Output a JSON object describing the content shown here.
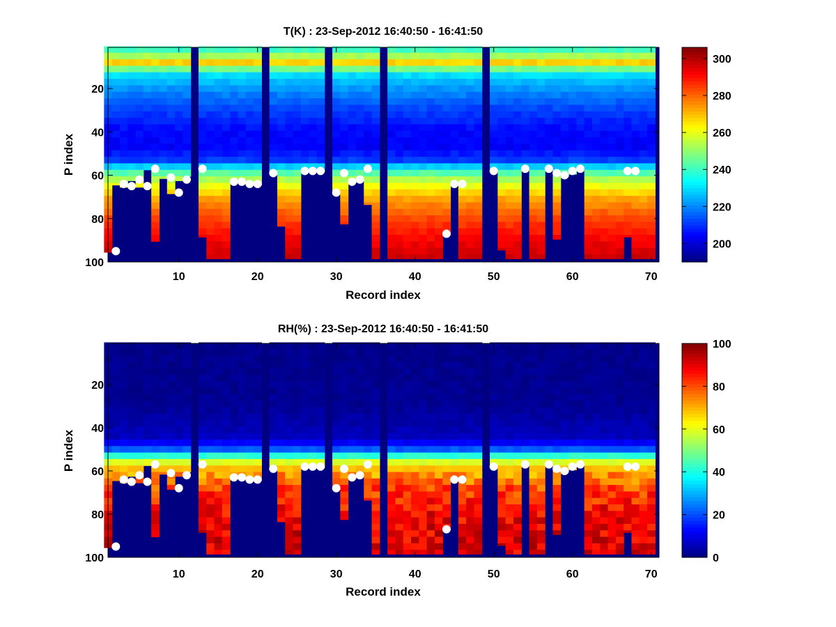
{
  "chart_data": [
    {
      "type": "heatmap",
      "title": "T(K) : 23-Sep-2012 16:40:50 - 16:41:50",
      "xlabel": "Record index",
      "ylabel": "P index",
      "xlim": [
        1,
        71
      ],
      "ylim": [
        100,
        1
      ],
      "y_reversed": true,
      "xticks": [
        10,
        20,
        30,
        40,
        50,
        60,
        70
      ],
      "yticks": [
        20,
        40,
        60,
        80,
        100
      ],
      "colormap": "jet",
      "clim": [
        190,
        306
      ],
      "colorbar_ticks": [
        200,
        220,
        240,
        260,
        280,
        300
      ],
      "field_profile": [
        [
          1,
          235
        ],
        [
          5,
          250
        ],
        [
          9,
          270
        ],
        [
          13,
          232
        ],
        [
          20,
          222
        ],
        [
          30,
          212
        ],
        [
          40,
          205
        ],
        [
          48,
          204
        ],
        [
          54,
          212
        ],
        [
          58,
          238
        ],
        [
          62,
          252
        ],
        [
          66,
          262
        ],
        [
          72,
          274
        ],
        [
          80,
          283
        ],
        [
          90,
          292
        ],
        [
          100,
          298
        ]
      ],
      "missing_value": 190,
      "missing_columns": [
        12,
        21,
        29,
        36,
        49
      ],
      "surface_p_index": [
        95,
        64,
        65,
        62,
        65,
        57,
        90,
        61,
        68,
        62,
        60,
        57,
        88,
        98,
        98,
        98,
        63,
        63,
        64,
        64,
        60,
        59,
        83,
        98,
        98,
        58,
        58,
        58,
        60,
        68,
        82,
        63,
        62,
        73,
        98,
        60,
        98,
        98,
        98,
        98,
        98,
        98,
        98,
        87,
        64,
        98,
        98,
        98,
        60,
        58,
        94,
        98,
        98,
        57,
        98,
        98,
        57,
        89,
        60,
        59,
        57,
        98,
        98,
        98,
        98,
        98,
        88,
        98,
        98,
        98
      ],
      "surface_markers": [
        {
          "x": 2,
          "y": 95
        },
        {
          "x": 3,
          "y": 64
        },
        {
          "x": 4,
          "y": 65
        },
        {
          "x": 5,
          "y": 62
        },
        {
          "x": 6,
          "y": 65
        },
        {
          "x": 7,
          "y": 57
        },
        {
          "x": 9,
          "y": 61
        },
        {
          "x": 10,
          "y": 68
        },
        {
          "x": 11,
          "y": 62
        },
        {
          "x": 13,
          "y": 57
        },
        {
          "x": 17,
          "y": 63
        },
        {
          "x": 18,
          "y": 63
        },
        {
          "x": 19,
          "y": 64
        },
        {
          "x": 20,
          "y": 64
        },
        {
          "x": 22,
          "y": 59
        },
        {
          "x": 26,
          "y": 58
        },
        {
          "x": 27,
          "y": 58
        },
        {
          "x": 28,
          "y": 58
        },
        {
          "x": 30,
          "y": 68
        },
        {
          "x": 31,
          "y": 59
        },
        {
          "x": 32,
          "y": 63
        },
        {
          "x": 33,
          "y": 62
        },
        {
          "x": 34,
          "y": 57
        },
        {
          "x": 44,
          "y": 87
        },
        {
          "x": 45,
          "y": 64
        },
        {
          "x": 46,
          "y": 64
        },
        {
          "x": 50,
          "y": 58
        },
        {
          "x": 54,
          "y": 57
        },
        {
          "x": 57,
          "y": 57
        },
        {
          "x": 58,
          "y": 59
        },
        {
          "x": 59,
          "y": 60
        },
        {
          "x": 60,
          "y": 58
        },
        {
          "x": 61,
          "y": 57
        },
        {
          "x": 67,
          "y": 58
        },
        {
          "x": 68,
          "y": 58
        }
      ]
    },
    {
      "type": "heatmap",
      "title": "RH(%) : 23-Sep-2012 16:40:50 - 16:41:50",
      "xlabel": "Record index",
      "ylabel": "P index",
      "xlim": [
        1,
        71
      ],
      "ylim": [
        100,
        1
      ],
      "y_reversed": true,
      "xticks": [
        10,
        20,
        30,
        40,
        50,
        60,
        70
      ],
      "yticks": [
        20,
        40,
        60,
        80,
        100
      ],
      "colormap": "jet",
      "clim": [
        0,
        100
      ],
      "colorbar_ticks": [
        0,
        20,
        40,
        60,
        80,
        100
      ],
      "field_profile": [
        [
          1,
          1
        ],
        [
          30,
          2
        ],
        [
          45,
          6
        ],
        [
          50,
          18
        ],
        [
          54,
          45
        ],
        [
          57,
          62
        ],
        [
          60,
          70
        ],
        [
          65,
          76
        ],
        [
          70,
          82
        ],
        [
          80,
          88
        ],
        [
          90,
          90
        ],
        [
          100,
          90
        ]
      ],
      "missing_value": 0,
      "missing_columns": [
        12,
        21,
        29,
        36,
        49
      ],
      "surface_p_index": [
        95,
        64,
        65,
        62,
        65,
        57,
        90,
        61,
        68,
        62,
        60,
        57,
        88,
        98,
        98,
        98,
        63,
        63,
        64,
        64,
        60,
        59,
        83,
        98,
        98,
        58,
        58,
        58,
        60,
        68,
        82,
        63,
        62,
        73,
        98,
        60,
        98,
        98,
        98,
        98,
        98,
        98,
        98,
        87,
        64,
        98,
        98,
        98,
        60,
        58,
        94,
        98,
        98,
        57,
        98,
        98,
        57,
        89,
        60,
        59,
        57,
        98,
        98,
        98,
        98,
        98,
        88,
        98,
        98,
        98
      ],
      "surface_markers": [
        {
          "x": 2,
          "y": 95
        },
        {
          "x": 3,
          "y": 64
        },
        {
          "x": 4,
          "y": 65
        },
        {
          "x": 5,
          "y": 62
        },
        {
          "x": 6,
          "y": 65
        },
        {
          "x": 7,
          "y": 57
        },
        {
          "x": 9,
          "y": 61
        },
        {
          "x": 10,
          "y": 68
        },
        {
          "x": 11,
          "y": 62
        },
        {
          "x": 13,
          "y": 57
        },
        {
          "x": 17,
          "y": 63
        },
        {
          "x": 18,
          "y": 63
        },
        {
          "x": 19,
          "y": 64
        },
        {
          "x": 20,
          "y": 64
        },
        {
          "x": 22,
          "y": 59
        },
        {
          "x": 26,
          "y": 58
        },
        {
          "x": 27,
          "y": 58
        },
        {
          "x": 28,
          "y": 58
        },
        {
          "x": 30,
          "y": 68
        },
        {
          "x": 31,
          "y": 59
        },
        {
          "x": 32,
          "y": 63
        },
        {
          "x": 33,
          "y": 62
        },
        {
          "x": 34,
          "y": 57
        },
        {
          "x": 44,
          "y": 87
        },
        {
          "x": 45,
          "y": 64
        },
        {
          "x": 46,
          "y": 64
        },
        {
          "x": 50,
          "y": 58
        },
        {
          "x": 54,
          "y": 57
        },
        {
          "x": 57,
          "y": 57
        },
        {
          "x": 58,
          "y": 59
        },
        {
          "x": 59,
          "y": 60
        },
        {
          "x": 60,
          "y": 58
        },
        {
          "x": 61,
          "y": 57
        },
        {
          "x": 67,
          "y": 58
        },
        {
          "x": 68,
          "y": 58
        }
      ]
    }
  ]
}
